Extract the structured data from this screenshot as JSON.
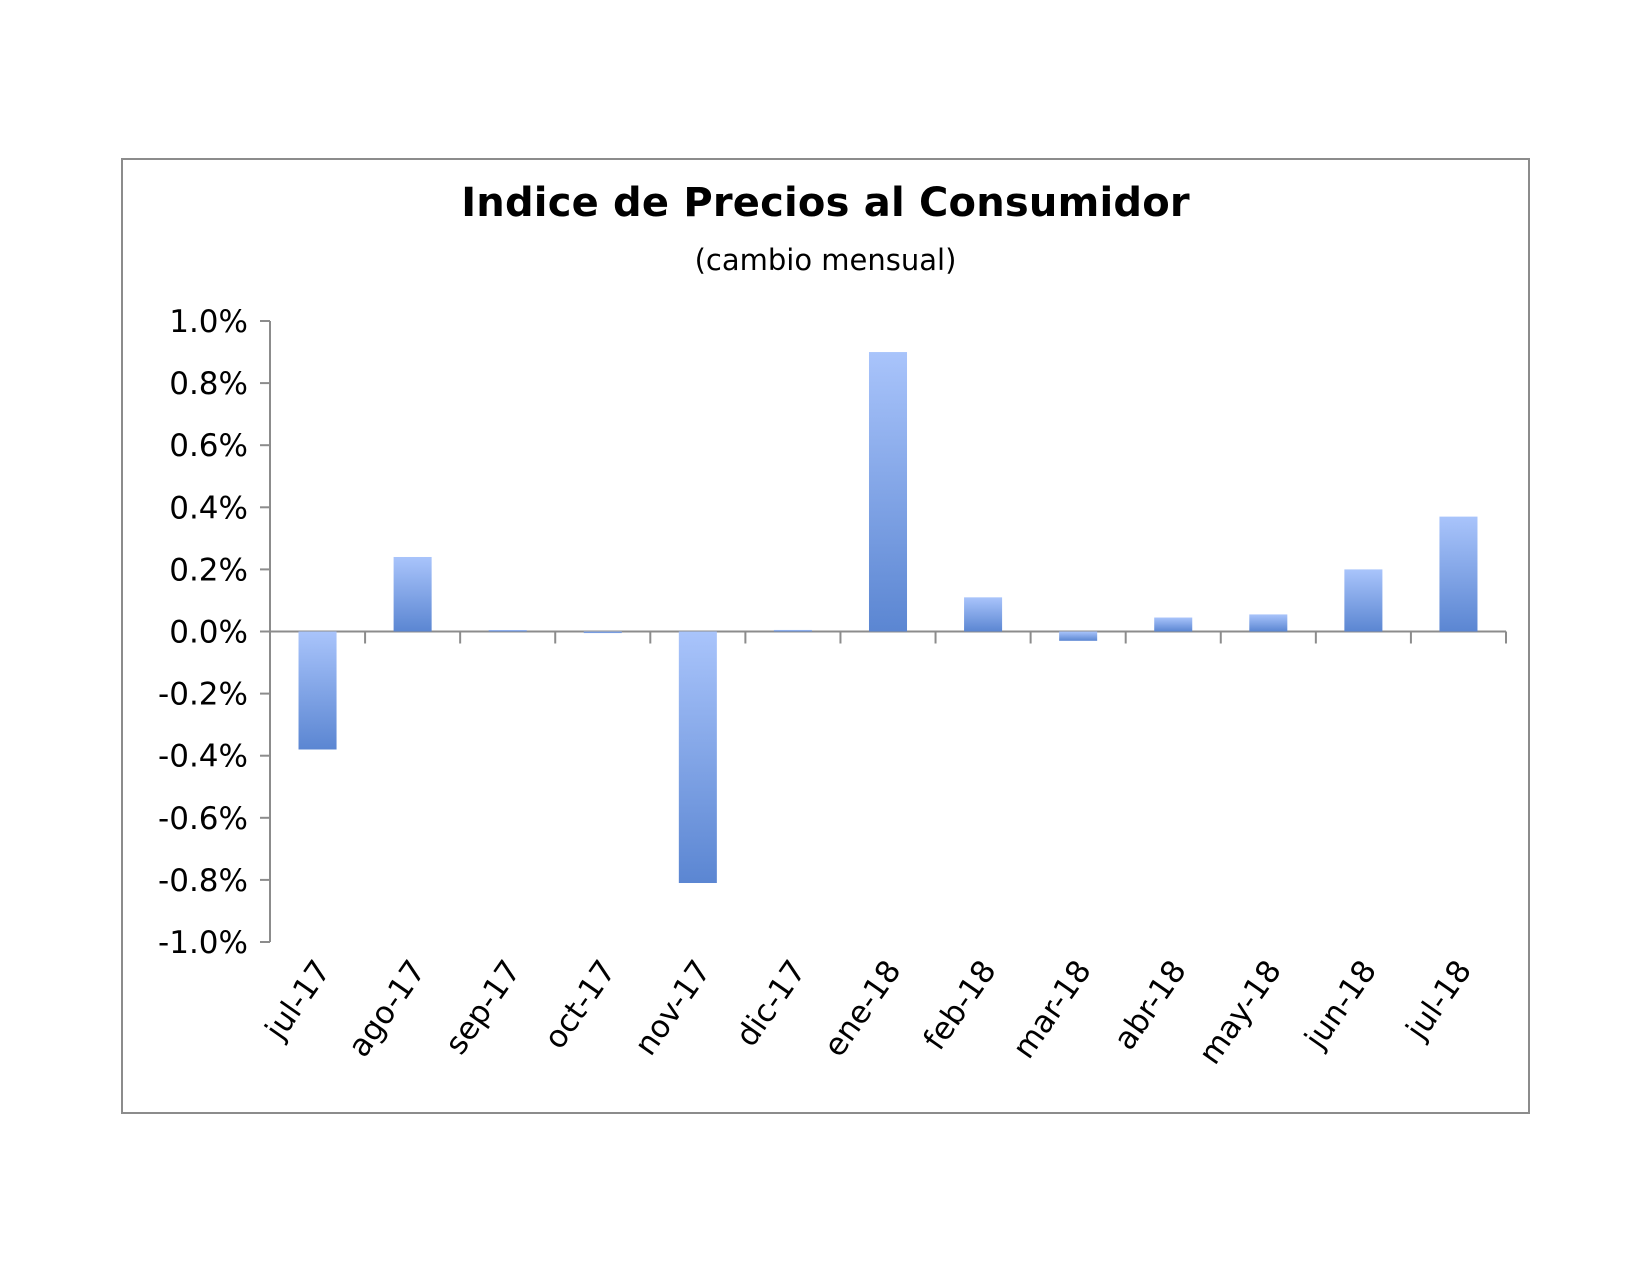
{
  "chart_data": {
    "type": "bar",
    "title": "Indice de Precios al Consumidor",
    "subtitle": "(cambio mensual)",
    "xlabel": "",
    "ylabel": "",
    "categories": [
      "jul-17",
      "ago-17",
      "sep-17",
      "oct-17",
      "nov-17",
      "dic-17",
      "ene-18",
      "feb-18",
      "mar-18",
      "abr-18",
      "may-18",
      "jun-18",
      "jul-18"
    ],
    "values": [
      -0.38,
      0.24,
      0.0,
      -0.005,
      -0.81,
      0.005,
      0.9,
      0.11,
      -0.03,
      0.045,
      0.055,
      0.2,
      0.37
    ],
    "ylim": [
      -1.0,
      1.0
    ],
    "yticks": [
      1.0,
      0.8,
      0.6,
      0.4,
      0.2,
      0.0,
      -0.2,
      -0.4,
      -0.6,
      -0.8,
      -1.0
    ],
    "ytick_labels": [
      "1.0%",
      "0.8%",
      "0.6%",
      "0.4%",
      "0.2%",
      "0.0%",
      "-0.2%",
      "-0.4%",
      "-0.6%",
      "-0.8%",
      "-1.0%"
    ],
    "grid": false,
    "legend": "none",
    "colors": {
      "bar_light": "#a9c4fb",
      "bar_dark": "#5b86d2",
      "axis": "#8c8c8c",
      "border": "#8c8c8c"
    }
  }
}
